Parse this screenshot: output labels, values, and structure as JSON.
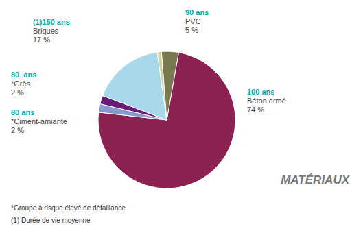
{
  "chart_data": {
    "type": "pie",
    "title": "MATÉRIAUX",
    "values": [
      74,
      2,
      2,
      17,
      1,
      4
    ],
    "colors": [
      "#8B2252",
      "#8899CC",
      "#6B1A7A",
      "#A8D8EA",
      "#D4D4A0",
      "#7A7A50"
    ],
    "annotations": [
      [
        "100 ans",
        "Béton armé",
        "74 %"
      ],
      [
        "80 ans",
        "*Ciment-amiante",
        "2 %"
      ],
      [
        "80  ans",
        "*Grès",
        "2 %"
      ],
      [
        "(1)150 ans",
        "Briques",
        "17 %"
      ],
      [
        "90 ans",
        "PVC",
        "5 %"
      ]
    ],
    "footnotes": [
      "*Groupe à risque élevé de défaillance",
      "(1) Durée de vie moyenne"
    ]
  }
}
